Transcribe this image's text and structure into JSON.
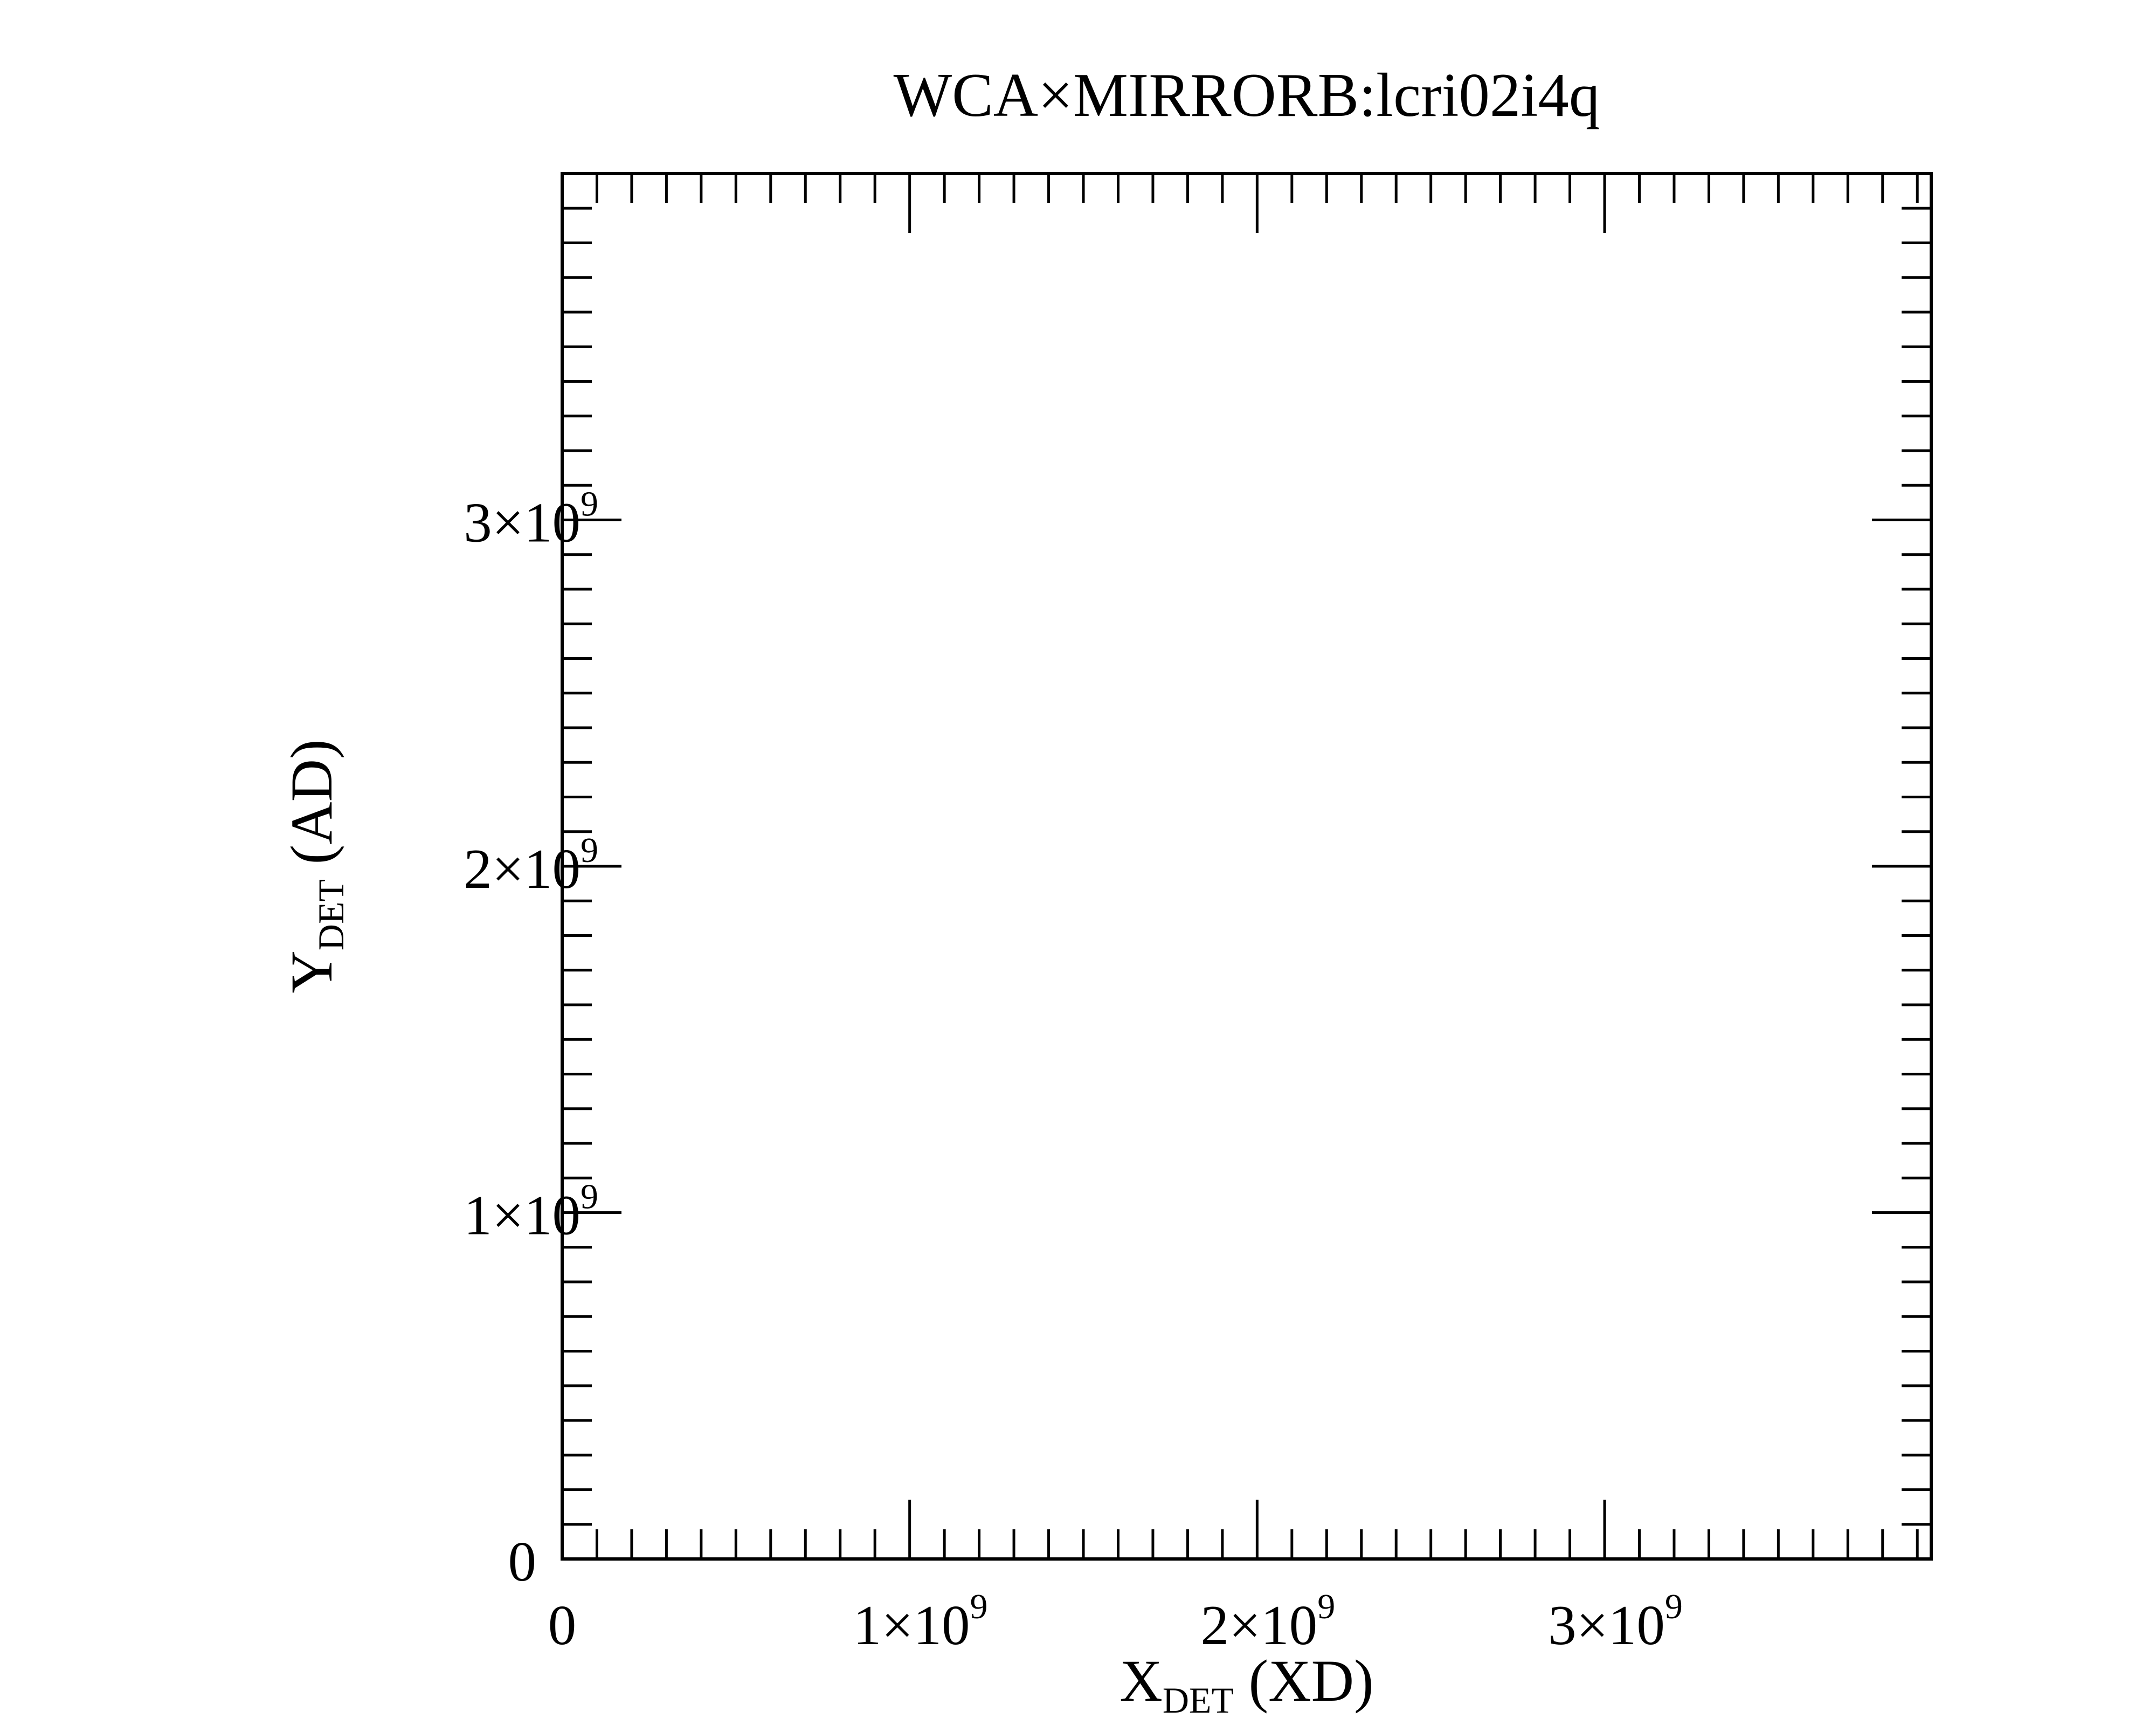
{
  "chart_data": {
    "type": "scatter",
    "title": "WCA×MIRRORB:lcri02i4q",
    "xlabel": {
      "main": "X",
      "sub": "DET",
      "suffix": " (XD)"
    },
    "ylabel": {
      "main": "Y",
      "sub": "DET",
      "suffix": " (AD)"
    },
    "xlim": [
      0,
      3940000000
    ],
    "ylim": [
      0,
      4000000000
    ],
    "x_ticks": [
      {
        "value": 0,
        "base": "0",
        "exp": ""
      },
      {
        "value": 1000000000,
        "base": "1×10",
        "exp": "9"
      },
      {
        "value": 2000000000,
        "base": "2×10",
        "exp": "9"
      },
      {
        "value": 3000000000,
        "base": "3×10",
        "exp": "9"
      }
    ],
    "y_ticks": [
      {
        "value": 0,
        "base": "0",
        "exp": ""
      },
      {
        "value": 1000000000,
        "base": "1×10",
        "exp": "9"
      },
      {
        "value": 2000000000,
        "base": "2×10",
        "exp": "9"
      },
      {
        "value": 3000000000,
        "base": "3×10",
        "exp": "9"
      }
    ],
    "minor_tick_step": 100000000,
    "grid": false,
    "series": []
  }
}
